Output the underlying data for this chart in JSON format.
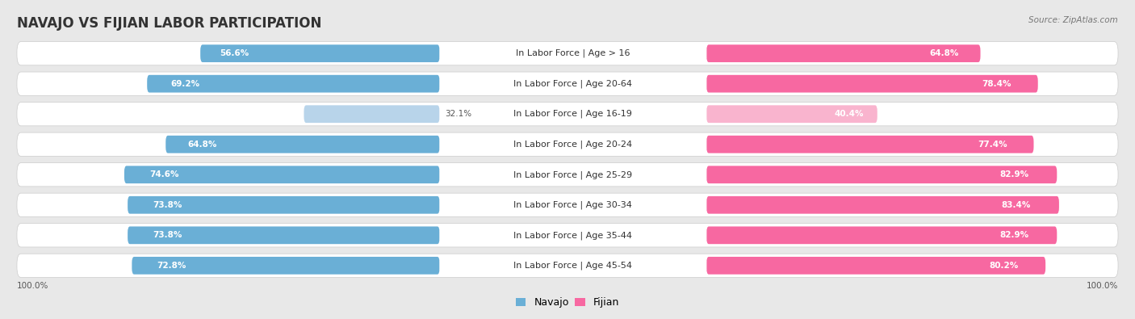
{
  "title": "NAVAJO VS FIJIAN LABOR PARTICIPATION",
  "source": "Source: ZipAtlas.com",
  "categories": [
    "In Labor Force | Age > 16",
    "In Labor Force | Age 20-64",
    "In Labor Force | Age 16-19",
    "In Labor Force | Age 20-24",
    "In Labor Force | Age 25-29",
    "In Labor Force | Age 30-34",
    "In Labor Force | Age 35-44",
    "In Labor Force | Age 45-54"
  ],
  "navajo_values": [
    56.6,
    69.2,
    32.1,
    64.8,
    74.6,
    73.8,
    73.8,
    72.8
  ],
  "fijian_values": [
    64.8,
    78.4,
    40.4,
    77.4,
    82.9,
    83.4,
    82.9,
    80.2
  ],
  "navajo_color": "#6aafd6",
  "navajo_color_light": "#b8d4ea",
  "fijian_color": "#f768a1",
  "fijian_color_light": "#f9b4ce",
  "bg_color": "#e8e8e8",
  "row_bg_color": "#f0f0f0",
  "title_fontsize": 12,
  "label_fontsize": 8,
  "value_fontsize": 7.5,
  "legend_fontsize": 9,
  "bottom_label": "100.0%",
  "max_value": 100.0
}
